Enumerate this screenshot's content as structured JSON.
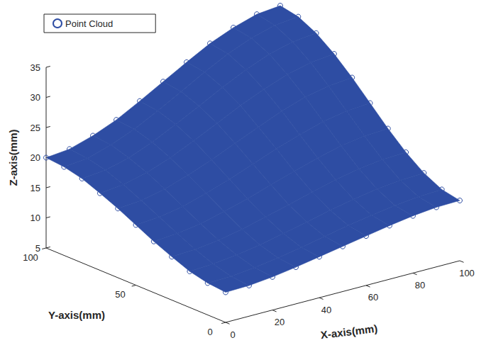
{
  "chart_data": {
    "type": "scatter3d",
    "legend": "upper left",
    "grid": false,
    "x_label": "X-axis(mm)",
    "y_label": "Y-axis(mm)",
    "z_label": "Z-axis(mm)",
    "xlim": [
      0,
      100
    ],
    "ylim": [
      0,
      100
    ],
    "zlim": [
      5,
      35
    ],
    "xticks": [
      0,
      20,
      40,
      60,
      80,
      100
    ],
    "yticks": [
      0,
      50,
      100
    ],
    "zticks": [
      5,
      10,
      15,
      20,
      25,
      30,
      35
    ],
    "series": [
      {
        "name": "Point Cloud",
        "color": "#2e4da3",
        "marker": "circle",
        "x": [
          0,
          10,
          20,
          30,
          40,
          50,
          60,
          70,
          80,
          90,
          100
        ],
        "y": [
          0,
          10,
          20,
          30,
          40,
          50,
          60,
          70,
          80,
          90,
          100
        ],
        "z": [
          [
            10,
            10.1,
            10.5,
            11.1,
            11.8,
            12.5,
            13.2,
            13.9,
            14.5,
            14.9,
            15
          ],
          [
            10.3,
            10.4,
            10.8,
            11.4,
            12.1,
            12.9,
            13.7,
            14.4,
            15.0,
            15.4,
            15.6
          ],
          [
            11.0,
            11.2,
            11.7,
            12.3,
            13.2,
            14.1,
            15.0,
            15.8,
            16.5,
            16.9,
            17.1
          ],
          [
            12.2,
            12.4,
            12.9,
            13.7,
            14.7,
            15.7,
            16.8,
            17.8,
            18.6,
            19.1,
            19.3
          ],
          [
            13.5,
            13.8,
            14.4,
            15.4,
            16.5,
            17.8,
            19.0,
            20.2,
            21.2,
            21.8,
            22.0
          ],
          [
            15,
            15.3,
            16.0,
            17.2,
            18.5,
            20,
            21.5,
            22.8,
            24.0,
            24.7,
            25
          ],
          [
            16.5,
            16.8,
            17.7,
            19.0,
            20.5,
            22.2,
            23.9,
            25.5,
            26.8,
            27.6,
            28.0
          ],
          [
            17.8,
            18.2,
            19.2,
            20.6,
            22.4,
            24.3,
            26.2,
            27.9,
            29.3,
            30.3,
            30.7
          ],
          [
            19.0,
            19.4,
            20.4,
            22.0,
            23.9,
            25.9,
            28.0,
            29.9,
            31.5,
            32.5,
            32.9
          ],
          [
            19.7,
            20.1,
            21.3,
            22.9,
            24.9,
            27.1,
            29.3,
            31.3,
            32.9,
            34.0,
            34.4
          ],
          [
            20,
            20.4,
            21.6,
            23.2,
            25.3,
            27.5,
            29.7,
            31.8,
            33.4,
            34.6,
            35
          ]
        ]
      }
    ]
  }
}
